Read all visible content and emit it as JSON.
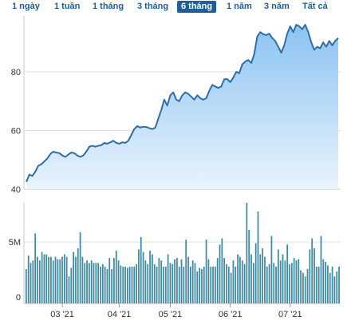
{
  "range_selector": {
    "items": [
      {
        "label": "1 ngày",
        "active": false
      },
      {
        "label": "1 tuần",
        "active": false
      },
      {
        "label": "1 tháng",
        "active": false
      },
      {
        "label": "3 tháng",
        "active": false
      },
      {
        "label": "6 tháng",
        "active": true
      },
      {
        "label": "1 năm",
        "active": false
      },
      {
        "label": "3 năm",
        "active": false
      },
      {
        "label": "Tất cả",
        "active": false
      }
    ]
  },
  "colors": {
    "line": "#2f6fa8",
    "area_top": "#8cc3f2",
    "area_bottom": "#eaf4fd",
    "volume_bar": "#3d8aa0",
    "active_tab_bg": "#1f5f99",
    "tab_text": "#1f5f99"
  },
  "chart_data": [
    {
      "type": "area",
      "title": "",
      "xlabel": "",
      "ylabel": "",
      "ylim": [
        40,
        99
      ],
      "yticks": [
        40,
        60,
        80
      ],
      "x_tick_labels": [
        "03 '21",
        "04 '21",
        "05 '21",
        "06 '21",
        "07 '21"
      ],
      "x_tick_index": [
        12,
        31,
        48,
        68,
        88
      ],
      "grid": true,
      "values": [
        42.5,
        45.0,
        44.5,
        46.0,
        48.0,
        48.5,
        49.5,
        50.5,
        52.0,
        52.8,
        52.5,
        52.3,
        51.5,
        51.0,
        51.8,
        52.5,
        52.3,
        51.5,
        51.0,
        51.5,
        52.8,
        54.5,
        54.8,
        54.5,
        54.8,
        55.0,
        55.8,
        55.5,
        56.0,
        56.5,
        55.8,
        55.5,
        56.0,
        55.8,
        56.5,
        58.5,
        60.5,
        61.5,
        61.0,
        61.3,
        61.2,
        60.8,
        60.5,
        61.0,
        64.0,
        67.0,
        70.5,
        68.5,
        72.0,
        73.0,
        70.5,
        70.0,
        72.0,
        73.0,
        72.5,
        71.5,
        70.5,
        72.0,
        71.0,
        70.5,
        71.0,
        73.5,
        75.5,
        75.0,
        74.5,
        75.0,
        77.5,
        77.5,
        76.5,
        78.0,
        80.0,
        79.5,
        82.5,
        83.5,
        84.0,
        83.0,
        86.0,
        92.0,
        93.5,
        92.8,
        92.5,
        93.0,
        91.5,
        90.5,
        88.5,
        86.5,
        89.0,
        93.0,
        95.5,
        93.5,
        96.0,
        95.5,
        94.5,
        96.0,
        93.5,
        90.0,
        87.5,
        88.5,
        88.0,
        90.0,
        88.5,
        90.5,
        89.0,
        90.5,
        91.5
      ]
    },
    {
      "type": "bar",
      "title": "",
      "xlabel": "",
      "ylabel": "",
      "ylim": [
        0,
        8.2
      ],
      "ytick_labels": [
        "0",
        "5M"
      ],
      "yticks": [
        0,
        5
      ],
      "values": [
        2.8,
        3.9,
        3.3,
        3.5,
        5.7,
        3.8,
        3.5,
        4.2,
        4.0,
        4.0,
        3.8,
        3.8,
        3.5,
        3.8,
        3.6,
        3.6,
        3.8,
        4.0,
        3.8,
        2.2,
        2.9,
        4.2,
        3.8,
        4.5,
        5.8,
        3.8,
        3.3,
        3.5,
        3.3,
        3.5,
        3.3,
        3.3,
        3.3,
        3.0,
        3.2,
        3.0,
        2.8,
        3.7,
        2.8,
        3.7,
        4.3,
        3.5,
        3.1,
        3.0,
        3.0,
        2.9,
        3.0,
        3.0,
        3.0,
        3.2,
        4.4,
        5.4,
        4.2,
        3.5,
        3.2,
        4.3,
        4.0,
        3.2,
        3.0,
        3.7,
        3.5,
        3.0,
        3.0,
        4.0,
        3.3,
        3.2,
        3.6,
        3.7,
        3.0,
        3.6,
        3.0,
        5.2,
        3.8,
        3.0,
        3.5,
        3.3,
        2.6,
        2.9,
        2.8,
        3.0,
        5.2,
        3.6,
        3.0,
        3.0,
        3.0,
        3.7,
        4.8,
        5.3,
        3.7,
        3.2,
        3.0,
        2.5,
        3.5,
        3.0,
        4.0,
        3.8,
        3.5,
        3.2,
        8.2,
        6.0,
        4.0,
        3.3,
        4.9,
        7.5,
        4.0,
        4.5,
        3.8,
        3.0,
        3.2,
        5.5,
        3.3,
        3.0,
        4.4,
        3.5,
        4.0,
        3.5,
        4.8,
        3.2,
        3.3,
        3.7,
        3.5,
        3.6,
        2.7,
        2.5,
        2.2,
        2.8,
        4.4,
        5.3,
        4.5,
        3.0,
        3.0,
        5.5,
        3.6,
        3.4,
        3.1,
        2.5,
        3.0,
        2.2,
        2.6,
        3.0
      ]
    }
  ]
}
